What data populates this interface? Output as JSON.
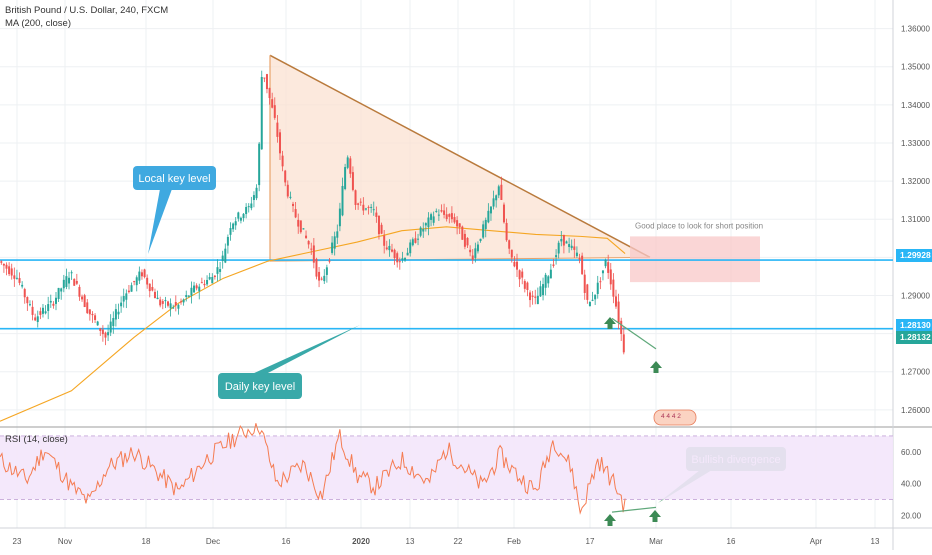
{
  "header": {
    "symbol": "British Pound / U.S. Dollar, 240, FXCM",
    "ma": "MA (200, close)",
    "rsi": "RSI (14, close)"
  },
  "annotations": {
    "local_key_level": "Local key level",
    "daily_key_level": "Daily key level",
    "short_note": "Good place to look for short position",
    "bullish_divergence": "Bullish divergence"
  },
  "price_tags": {
    "upper": "1.29928",
    "lower_a": "1.28130",
    "lower_b": "1.28132"
  },
  "colors": {
    "bull": "#26a69a",
    "bear": "#ef5350",
    "key_line": "#29b6f6",
    "ma": "#f5a623",
    "triangle_line": "#b97a3c",
    "triangle_fill": "#fbe0cf",
    "short_box": "#f8c8c8",
    "rsi_line": "#f57c52",
    "rsi_band": "#f3e5fb",
    "callout_blue": "#3fa9e0",
    "callout_teal": "#39a9a9",
    "callout_green": "#5fa87a",
    "arrow_green": "#3c8a55"
  },
  "chart_data": [
    {
      "type": "candlestick",
      "title": "British Pound / U.S. Dollar, 240, FXCM",
      "y_axis_ticks": [
        1.26,
        1.27,
        1.28,
        1.29,
        1.3,
        1.31,
        1.32,
        1.33,
        1.34,
        1.35,
        1.36
      ],
      "y_axis_labels": [
        "1.26000",
        "1.27000",
        "1.28000",
        "1.29000",
        "1.30000",
        "1.31000",
        "1.32000",
        "1.33000",
        "1.34000",
        "1.35000",
        "1.36000"
      ],
      "ylim": [
        1.2555,
        1.3675
      ],
      "x_axis_labels": [
        "23",
        "Nov",
        "18",
        "Dec",
        "16",
        "2020",
        "13",
        "22",
        "Feb",
        "17",
        "Mar",
        "16",
        "Apr",
        "13"
      ],
      "series": [
        {
          "name": "MA (200, close)",
          "points": [
            [
              0.0,
              1.257
            ],
            [
              0.08,
              1.265
            ],
            [
              0.15,
              1.279
            ],
            [
              0.2,
              1.288
            ],
            [
              0.25,
              1.2945
            ],
            [
              0.3,
              1.299
            ],
            [
              0.35,
              1.3015
            ],
            [
              0.4,
              1.304
            ],
            [
              0.45,
              1.307
            ],
            [
              0.5,
              1.308
            ],
            [
              0.55,
              1.307
            ],
            [
              0.6,
              1.306
            ],
            [
              0.65,
              1.3055
            ],
            [
              0.68,
              1.305
            ],
            [
              0.7,
              1.301
            ]
          ]
        },
        {
          "name": "price",
          "points": [
            [
              0.0,
              1.299
            ],
            [
              0.02,
              1.295
            ],
            [
              0.04,
              1.284
            ],
            [
              0.06,
              1.288
            ],
            [
              0.08,
              1.296
            ],
            [
              0.1,
              1.286
            ],
            [
              0.12,
              1.279
            ],
            [
              0.14,
              1.29
            ],
            [
              0.16,
              1.296
            ],
            [
              0.18,
              1.288
            ],
            [
              0.2,
              1.287
            ],
            [
              0.22,
              1.292
            ],
            [
              0.24,
              1.295
            ],
            [
              0.25,
              1.299
            ],
            [
              0.26,
              1.309
            ],
            [
              0.28,
              1.313
            ],
            [
              0.29,
              1.319
            ],
            [
              0.295,
              1.35
            ],
            [
              0.3,
              1.345
            ],
            [
              0.31,
              1.335
            ],
            [
              0.32,
              1.32
            ],
            [
              0.33,
              1.312
            ],
            [
              0.35,
              1.302
            ],
            [
              0.36,
              1.292
            ],
            [
              0.38,
              1.308
            ],
            [
              0.39,
              1.328
            ],
            [
              0.4,
              1.314
            ],
            [
              0.42,
              1.312
            ],
            [
              0.43,
              1.304
            ],
            [
              0.45,
              1.299
            ],
            [
              0.47,
              1.306
            ],
            [
              0.49,
              1.312
            ],
            [
              0.51,
              1.31
            ],
            [
              0.53,
              1.3
            ],
            [
              0.55,
              1.312
            ],
            [
              0.56,
              1.319
            ],
            [
              0.57,
              1.302
            ],
            [
              0.59,
              1.292
            ],
            [
              0.6,
              1.288
            ],
            [
              0.62,
              1.298
            ],
            [
              0.63,
              1.305
            ],
            [
              0.65,
              1.3
            ],
            [
              0.66,
              1.287
            ],
            [
              0.67,
              1.292
            ],
            [
              0.68,
              1.299
            ],
            [
              0.69,
              1.289
            ],
            [
              0.7,
              1.276
            ]
          ]
        }
      ],
      "key_levels": [
        {
          "label": "Local key level",
          "value": 1.29928
        },
        {
          "label": "Daily key level",
          "value": 1.2813
        }
      ],
      "triangle": {
        "apex_high": 1.353,
        "base": 1.299,
        "end": 1.3
      },
      "short_zone": {
        "label": "Good place to look for short position",
        "top": 1.3055,
        "bottom": 1.2935
      }
    },
    {
      "type": "line",
      "title": "RSI (14, close)",
      "y_axis_ticks": [
        20,
        40,
        60
      ],
      "y_axis_labels": [
        "20.00",
        "40.00",
        "60.00"
      ],
      "ylim": [
        12,
        75
      ],
      "band": [
        30,
        70
      ],
      "series": [
        {
          "name": "RSI (14, close)",
          "points": [
            [
              0.0,
              55
            ],
            [
              0.03,
              42
            ],
            [
              0.05,
              62
            ],
            [
              0.08,
              38
            ],
            [
              0.1,
              28
            ],
            [
              0.12,
              50
            ],
            [
              0.15,
              60
            ],
            [
              0.18,
              45
            ],
            [
              0.2,
              35
            ],
            [
              0.23,
              55
            ],
            [
              0.26,
              68
            ],
            [
              0.29,
              78
            ],
            [
              0.31,
              40
            ],
            [
              0.34,
              52
            ],
            [
              0.36,
              32
            ],
            [
              0.38,
              70
            ],
            [
              0.4,
              45
            ],
            [
              0.42,
              38
            ],
            [
              0.45,
              55
            ],
            [
              0.48,
              40
            ],
            [
              0.5,
              62
            ],
            [
              0.52,
              50
            ],
            [
              0.54,
              38
            ],
            [
              0.56,
              58
            ],
            [
              0.58,
              45
            ],
            [
              0.6,
              35
            ],
            [
              0.62,
              68
            ],
            [
              0.64,
              50
            ],
            [
              0.65,
              22
            ],
            [
              0.67,
              55
            ],
            [
              0.69,
              38
            ],
            [
              0.7,
              25
            ]
          ]
        }
      ]
    }
  ]
}
